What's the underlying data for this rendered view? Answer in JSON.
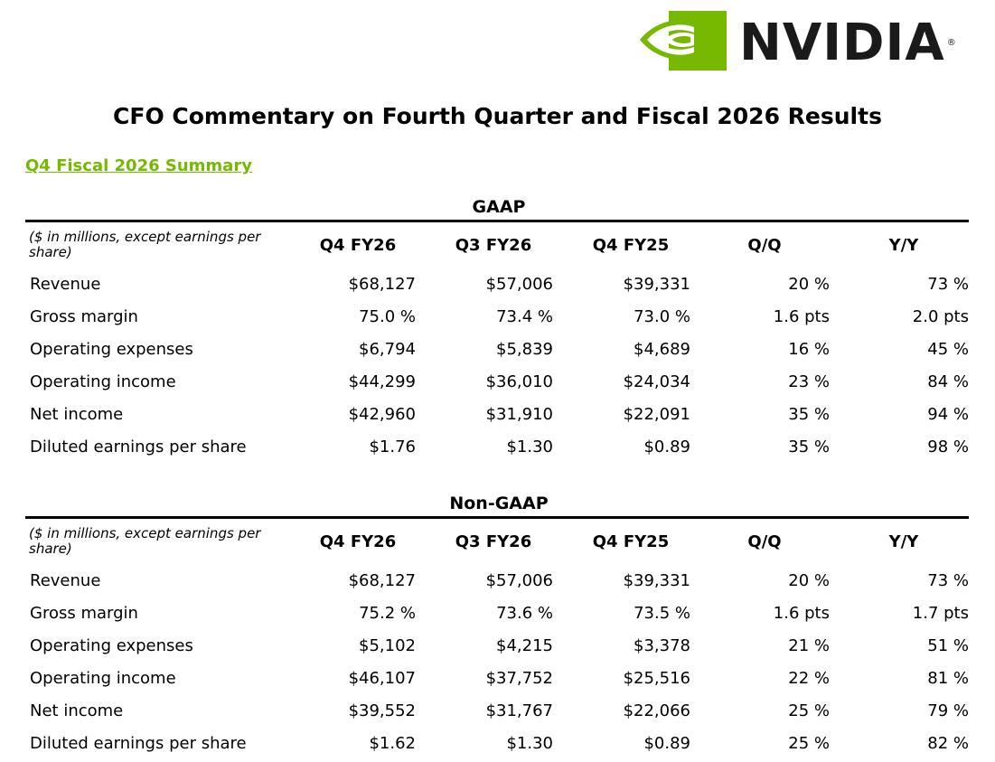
{
  "logo": {
    "wordmark": "NVIDIA",
    "trademark": "®",
    "brand_color": "#76b900"
  },
  "title": "CFO Commentary on Fourth Quarter and Fiscal 2026 Results",
  "section_title": "Q4 Fiscal 2026 Summary",
  "colors": {
    "accent": "#76b900",
    "text": "#000000"
  },
  "tables": [
    {
      "heading": "GAAP",
      "unit_note": "($ in millions, except earnings per share)",
      "columns": [
        "Q4 FY26",
        "Q3 FY26",
        "Q4 FY25",
        "Q/Q",
        "Y/Y"
      ],
      "rows": [
        {
          "label": "Revenue",
          "values": [
            "$68,127",
            "$57,006",
            "$39,331",
            "20 %",
            "73 %"
          ]
        },
        {
          "label": "Gross margin",
          "values": [
            "75.0 %",
            "73.4 %",
            "73.0 %",
            "1.6 pts",
            "2.0 pts"
          ]
        },
        {
          "label": "Operating expenses",
          "values": [
            "$6,794",
            "$5,839",
            "$4,689",
            "16 %",
            "45 %"
          ]
        },
        {
          "label": "Operating income",
          "values": [
            "$44,299",
            "$36,010",
            "$24,034",
            "23 %",
            "84 %"
          ]
        },
        {
          "label": "Net income",
          "values": [
            "$42,960",
            "$31,910",
            "$22,091",
            "35 %",
            "94 %"
          ]
        },
        {
          "label": "Diluted earnings per share",
          "values": [
            "$1.76",
            "$1.30",
            "$0.89",
            "35 %",
            "98 %"
          ]
        }
      ]
    },
    {
      "heading": "Non-GAAP",
      "unit_note": "($ in millions, except earnings per share)",
      "columns": [
        "Q4 FY26",
        "Q3 FY26",
        "Q4 FY25",
        "Q/Q",
        "Y/Y"
      ],
      "rows": [
        {
          "label": "Revenue",
          "values": [
            "$68,127",
            "$57,006",
            "$39,331",
            "20 %",
            "73 %"
          ]
        },
        {
          "label": "Gross margin",
          "values": [
            "75.2 %",
            "73.6 %",
            "73.5 %",
            "1.6 pts",
            "1.7 pts"
          ]
        },
        {
          "label": "Operating expenses",
          "values": [
            "$5,102",
            "$4,215",
            "$3,378",
            "21 %",
            "51 %"
          ]
        },
        {
          "label": "Operating income",
          "values": [
            "$46,107",
            "$37,752",
            "$25,516",
            "22 %",
            "81 %"
          ]
        },
        {
          "label": "Net income",
          "values": [
            "$39,552",
            "$31,767",
            "$22,066",
            "25 %",
            "79 %"
          ]
        },
        {
          "label": "Diluted earnings per share",
          "values": [
            "$1.62",
            "$1.30",
            "$0.89",
            "25 %",
            "82 %"
          ]
        }
      ]
    }
  ]
}
